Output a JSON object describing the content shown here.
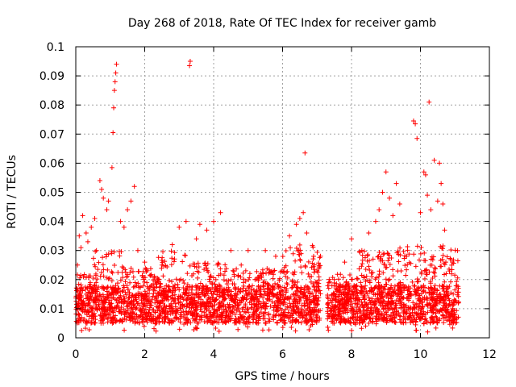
{
  "chart_data": {
    "type": "scatter",
    "title": "Day 268 of 2018, Rate Of TEC Index for receiver gamb",
    "xlabel": "GPS time / hours",
    "ylabel": "ROTI / TECUs",
    "xlim": [
      0,
      12
    ],
    "ylim": [
      0,
      0.1
    ],
    "xticks": [
      "0",
      "2",
      "4",
      "6",
      "8",
      "10",
      "12"
    ],
    "yticks": [
      "0",
      "0.01",
      "0.02",
      "0.03",
      "0.04",
      "0.05",
      "0.06",
      "0.07",
      "0.08",
      "0.09",
      "0.1"
    ],
    "grid": true,
    "marker": "+",
    "series_color": "#ff0000",
    "data_gap_hours": [
      7.1,
      7.3
    ],
    "series": [
      {
        "name": "ROTI",
        "points": [
          [
            0.05,
            0.025
          ],
          [
            0.1,
            0.035
          ],
          [
            0.15,
            0.031
          ],
          [
            0.2,
            0.042
          ],
          [
            0.3,
            0.036
          ],
          [
            0.35,
            0.033
          ],
          [
            0.45,
            0.038
          ],
          [
            0.55,
            0.041
          ],
          [
            0.6,
            0.03
          ],
          [
            0.7,
            0.054
          ],
          [
            0.75,
            0.051
          ],
          [
            0.8,
            0.048
          ],
          [
            0.9,
            0.044
          ],
          [
            0.95,
            0.047
          ],
          [
            1.05,
            0.0585
          ],
          [
            1.08,
            0.0705
          ],
          [
            1.1,
            0.079
          ],
          [
            1.12,
            0.085
          ],
          [
            1.14,
            0.088
          ],
          [
            1.16,
            0.091
          ],
          [
            1.18,
            0.094
          ],
          [
            1.3,
            0.04
          ],
          [
            1.4,
            0.038
          ],
          [
            1.5,
            0.044
          ],
          [
            1.6,
            0.047
          ],
          [
            1.7,
            0.052
          ],
          [
            1.8,
            0.03
          ],
          [
            2.0,
            0.026
          ],
          [
            2.2,
            0.018
          ],
          [
            2.5,
            0.025
          ],
          [
            2.8,
            0.032
          ],
          [
            3.0,
            0.038
          ],
          [
            3.2,
            0.04
          ],
          [
            3.3,
            0.0935
          ],
          [
            3.32,
            0.095
          ],
          [
            3.5,
            0.034
          ],
          [
            3.6,
            0.039
          ],
          [
            3.8,
            0.037
          ],
          [
            4.0,
            0.04
          ],
          [
            4.2,
            0.043
          ],
          [
            4.5,
            0.03
          ],
          [
            4.8,
            0.025
          ],
          [
            5.0,
            0.03
          ],
          [
            5.2,
            0.02
          ],
          [
            5.5,
            0.03
          ],
          [
            5.8,
            0.028
          ],
          [
            6.2,
            0.035
          ],
          [
            6.4,
            0.039
          ],
          [
            6.5,
            0.041
          ],
          [
            6.6,
            0.043
          ],
          [
            6.65,
            0.0635
          ],
          [
            6.7,
            0.036
          ],
          [
            6.9,
            0.028
          ],
          [
            7.5,
            0.02
          ],
          [
            7.8,
            0.026
          ],
          [
            8.0,
            0.034
          ],
          [
            8.3,
            0.03
          ],
          [
            8.5,
            0.036
          ],
          [
            8.7,
            0.04
          ],
          [
            8.8,
            0.044
          ],
          [
            8.9,
            0.05
          ],
          [
            9.0,
            0.057
          ],
          [
            9.1,
            0.048
          ],
          [
            9.2,
            0.042
          ],
          [
            9.3,
            0.053
          ],
          [
            9.4,
            0.046
          ],
          [
            9.6,
            0.028
          ],
          [
            9.8,
            0.0745
          ],
          [
            9.85,
            0.0735
          ],
          [
            9.9,
            0.0685
          ],
          [
            10.0,
            0.043
          ],
          [
            10.1,
            0.057
          ],
          [
            10.15,
            0.056
          ],
          [
            10.2,
            0.049
          ],
          [
            10.25,
            0.081
          ],
          [
            10.3,
            0.044
          ],
          [
            10.4,
            0.061
          ],
          [
            10.5,
            0.047
          ],
          [
            10.55,
            0.06
          ],
          [
            10.6,
            0.053
          ],
          [
            10.65,
            0.046
          ],
          [
            10.7,
            0.037
          ],
          [
            10.9,
            0.022
          ],
          [
            11.1,
            0.012
          ]
        ]
      }
    ]
  }
}
